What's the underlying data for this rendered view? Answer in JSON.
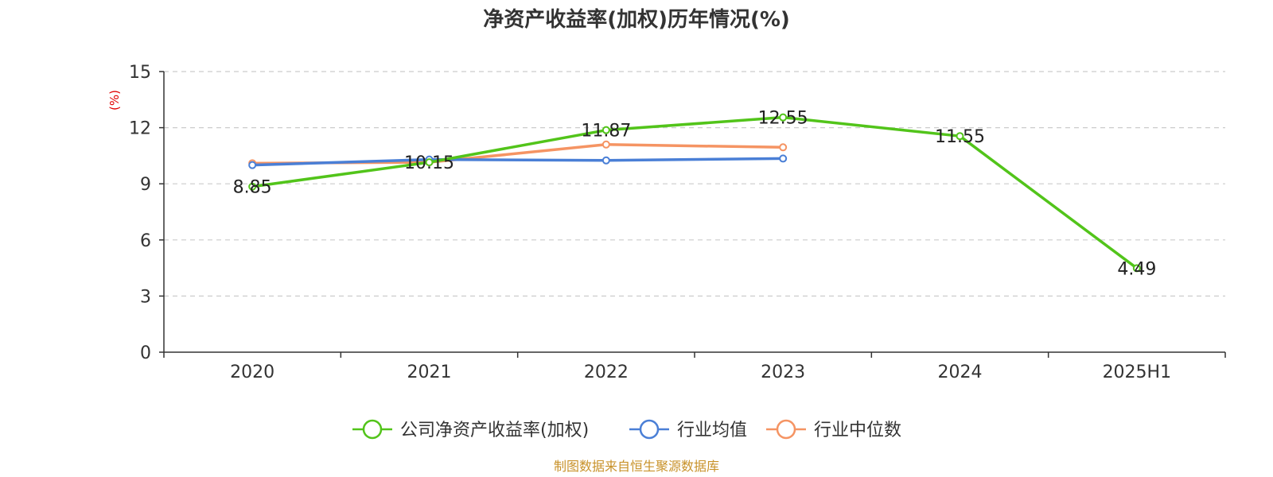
{
  "chart_data": {
    "type": "line",
    "title": "净资产收益率(加权)历年情况(%)",
    "ylabel": "(%)",
    "xlabel": "",
    "categories": [
      "2020",
      "2021",
      "2022",
      "2023",
      "2024",
      "2025H1"
    ],
    "ylim": [
      0,
      15
    ],
    "yticks": [
      0,
      3,
      6,
      9,
      12,
      15
    ],
    "grid": true,
    "legend_position": "bottom",
    "series": [
      {
        "name": "公司净资产收益率(加权)",
        "color": "#52c41a",
        "values": [
          8.85,
          10.15,
          11.87,
          12.55,
          11.55,
          4.49
        ],
        "show_labels": true
      },
      {
        "name": "行业均值",
        "color": "#4a7fd6",
        "values": [
          10.0,
          10.3,
          10.25,
          10.35,
          null,
          null
        ],
        "show_labels": false
      },
      {
        "name": "行业中位数",
        "color": "#f59463",
        "values": [
          10.1,
          10.15,
          11.1,
          10.95,
          null,
          null
        ],
        "show_labels": false
      }
    ]
  },
  "source_note": "制图数据来自恒生聚源数据库"
}
